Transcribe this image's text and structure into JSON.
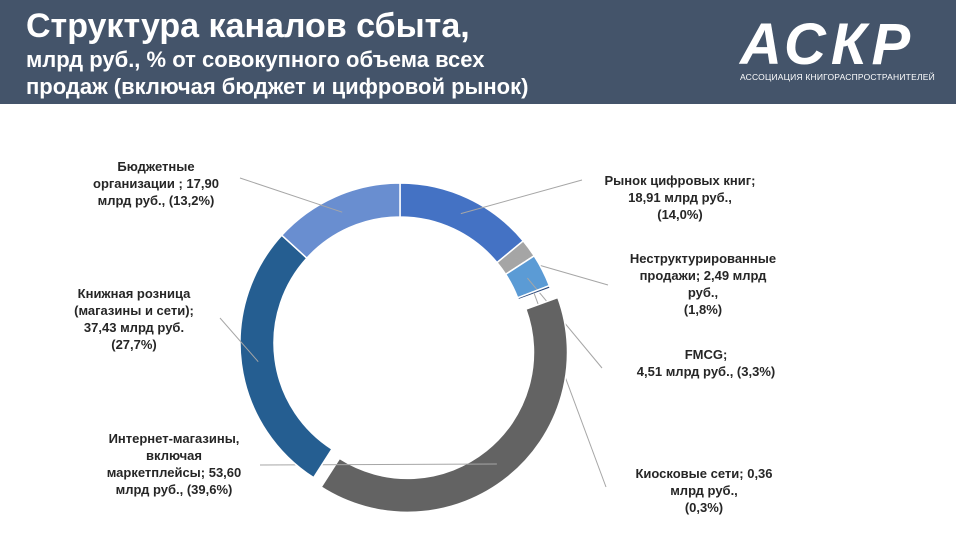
{
  "header": {
    "title_line1": "Структура каналов сбыта,",
    "title_line2": "млрд руб., % от совокупного объема всех",
    "title_line3": "продаж (включая бюджет и цифровой рынок)",
    "logo_text": "АСКР",
    "logo_subtitle": "АССОЦИАЦИЯ КНИГОРАСПРОСТРАНИТЕЛЕЙ"
  },
  "colors": {
    "banner": "#44546a",
    "leader_line": "#a6a6a6"
  },
  "chart_data": {
    "type": "pie",
    "variant": "donut",
    "unit": "млрд руб.",
    "slices": [
      {
        "category": "Рынок цифровых книг",
        "value": 18.91,
        "percent": 14.0,
        "color": "#4472c4",
        "label": [
          "Рынок цифровых книг;",
          "18,91 млрд руб.,",
          "(14,0%)"
        ]
      },
      {
        "category": "Неструктурированные продажи",
        "value": 2.49,
        "percent": 1.8,
        "color": "#a5a5a5",
        "label": [
          "Неструктурированные",
          "продажи; 2,49 млрд",
          "руб.,",
          "(1,8%)"
        ]
      },
      {
        "category": "FMCG",
        "value": 4.51,
        "percent": 3.3,
        "color": "#5b9bd5",
        "label": [
          "FMCG;",
          "4,51 млрд руб., (3,3%)"
        ]
      },
      {
        "category": "Киосковые сети",
        "value": 0.36,
        "percent": 0.3,
        "color": "#264478",
        "label": [
          "Киосковые сети; 0,36",
          "млрд руб.,",
          "(0,3%)"
        ]
      },
      {
        "category": "Интернет-магазины, включая маркетплейсы",
        "value": 53.6,
        "percent": 39.6,
        "color": "#636363",
        "label": [
          "Интернет-магазины,",
          "включая",
          "маркетплейсы; 53,60",
          "млрд руб., (39,6%)"
        ]
      },
      {
        "category": "Книжная розница (магазины и сети)",
        "value": 37.43,
        "percent": 27.7,
        "color": "#255e91",
        "label": [
          "Книжная розница",
          "(магазины и сети);",
          "37,43 млрд руб.",
          "(27,7%)"
        ]
      },
      {
        "category": "Бюджетные организации",
        "value": 17.9,
        "percent": 13.2,
        "color": "#698ed0",
        "label": [
          "Бюджетные",
          "организации ; 17,90",
          "млрд руб., (13,2%)"
        ]
      }
    ]
  }
}
